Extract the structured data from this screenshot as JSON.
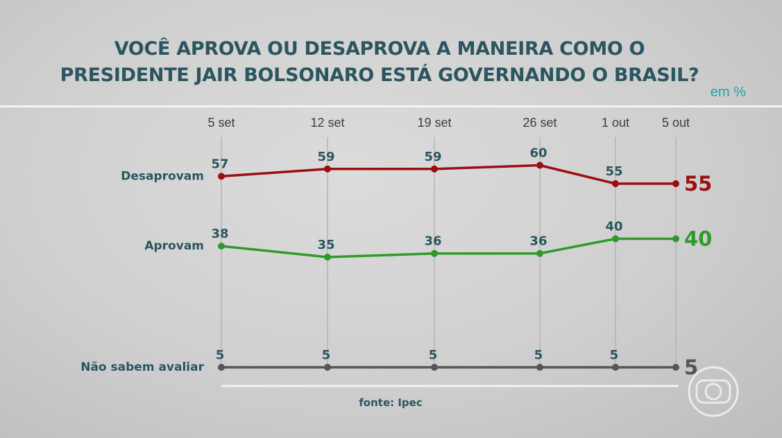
{
  "header": {
    "title_line1": "VOCÊ APROVA OU DESAPROVA A MANEIRA COMO O",
    "title_line2": "PRESIDENTE JAIR BOLSONARO ESTÁ GOVERNANDO O BRASIL?",
    "unit": "em %"
  },
  "source": "fonte: Ipec",
  "colors": {
    "desaprovam": "#9b0f12",
    "aprovam": "#2f9a2a",
    "nao_sabem": "#555555",
    "label": "#2b5560",
    "tick": "#3e3e3e"
  },
  "logo_icon": "globo-logo-icon",
  "chart_data": {
    "type": "line",
    "title": "VOCÊ APROVA OU DESAPROVA A MANEIRA COMO O PRESIDENTE JAIR BOLSONARO ESTÁ GOVERNANDO O BRASIL?",
    "categories": [
      "5 set",
      "12 set",
      "19 set",
      "26 set",
      "1 out",
      "5 out"
    ],
    "ylabel": "em %",
    "ylim": [
      0,
      65
    ],
    "grid": "vertical",
    "legend": "left",
    "series": [
      {
        "name": "Desaprovam",
        "key": "desaprovam",
        "values": [
          57,
          59,
          59,
          60,
          55,
          55
        ]
      },
      {
        "name": "Aprovam",
        "key": "aprovam",
        "values": [
          38,
          35,
          36,
          36,
          40,
          40
        ]
      },
      {
        "name": "Não sabem avaliar",
        "key": "nao_sabem",
        "values": [
          5,
          5,
          5,
          5,
          5,
          5
        ]
      }
    ]
  }
}
